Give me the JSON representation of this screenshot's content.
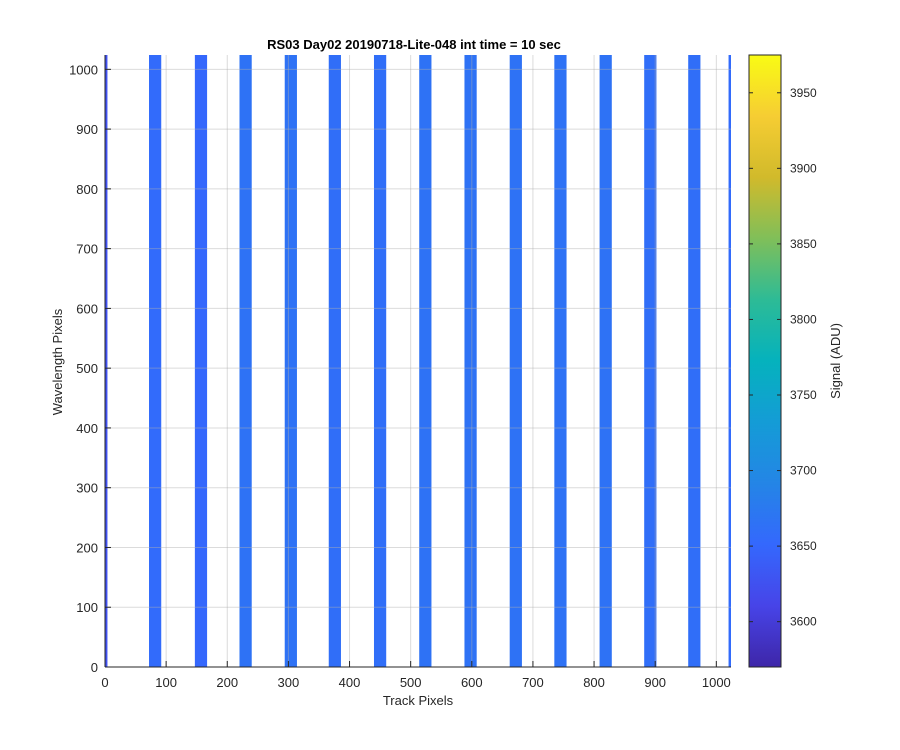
{
  "chart_data": {
    "type": "heatmap",
    "title": "RS03 Day02 20190718-Lite-048 int time = 10 sec",
    "xlabel": "Track Pixels",
    "ylabel": "Wavelength Pixels",
    "xlim": [
      0,
      1024
    ],
    "ylim": [
      0,
      1024
    ],
    "xticks": [
      "0",
      "100",
      "200",
      "300",
      "400",
      "500",
      "600",
      "700",
      "800",
      "900",
      "1000"
    ],
    "yticks": [
      "0",
      "100",
      "200",
      "300",
      "400",
      "500",
      "600",
      "700",
      "800",
      "900",
      "1000"
    ],
    "grid": true,
    "background_value": "none",
    "stripes": [
      {
        "x_start": 0,
        "x_end": 4,
        "value": 3625
      },
      {
        "x_start": 72,
        "x_end": 92,
        "value": 3655
      },
      {
        "x_start": 147,
        "x_end": 167,
        "value": 3650
      },
      {
        "x_start": 220,
        "x_end": 240,
        "value": 3665
      },
      {
        "x_start": 294,
        "x_end": 314,
        "value": 3665
      },
      {
        "x_start": 366,
        "x_end": 386,
        "value": 3660
      },
      {
        "x_start": 440,
        "x_end": 460,
        "value": 3660
      },
      {
        "x_start": 514,
        "x_end": 534,
        "value": 3665
      },
      {
        "x_start": 588,
        "x_end": 608,
        "value": 3665
      },
      {
        "x_start": 662,
        "x_end": 682,
        "value": 3665
      },
      {
        "x_start": 735,
        "x_end": 755,
        "value": 3665
      },
      {
        "x_start": 809,
        "x_end": 829,
        "value": 3665
      },
      {
        "x_start": 882,
        "x_end": 902,
        "value": 3660
      },
      {
        "x_start": 954,
        "x_end": 974,
        "value": 3660
      },
      {
        "x_start": 1020,
        "x_end": 1024,
        "value": 3655
      }
    ],
    "colorbar": {
      "label": "Signal (ADU)",
      "colormap": "parula",
      "range": [
        3570,
        3975
      ],
      "ticks": [
        "3600",
        "3650",
        "3700",
        "3750",
        "3800",
        "3850",
        "3900",
        "3950"
      ]
    }
  }
}
